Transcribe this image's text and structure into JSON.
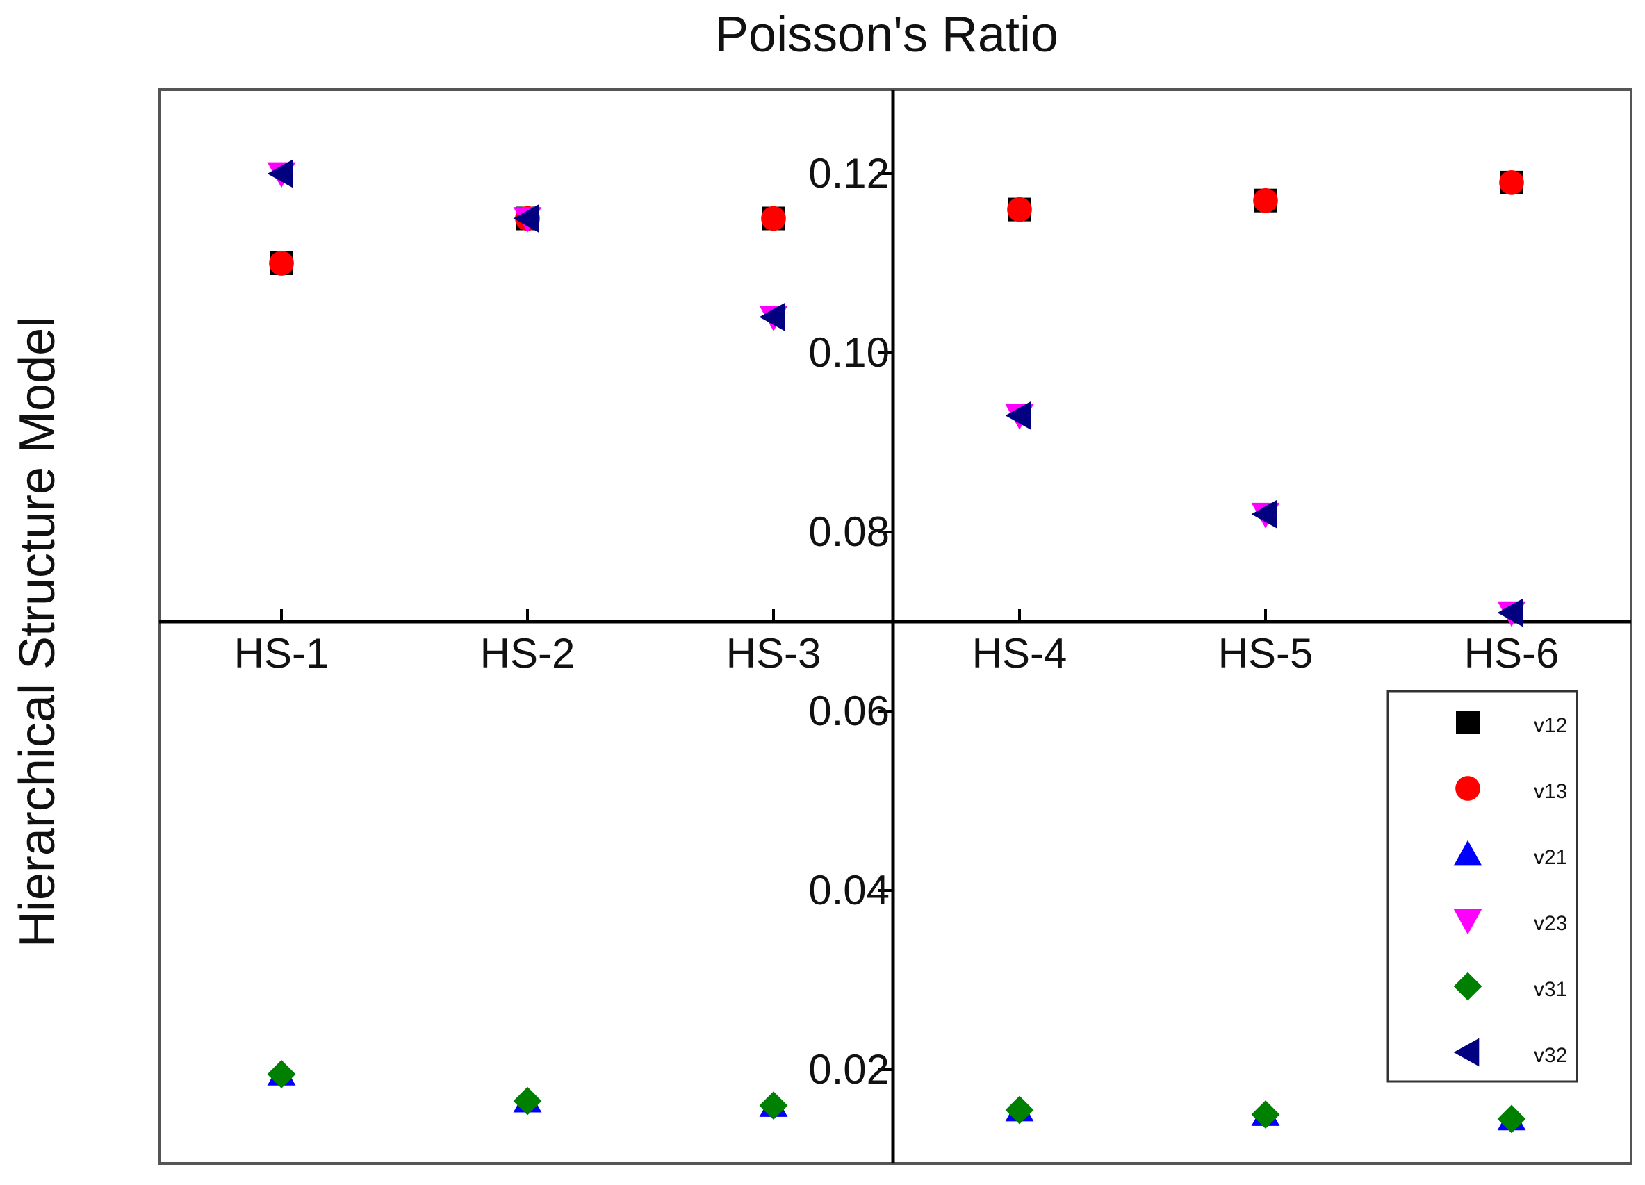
{
  "chart_data": {
    "type": "scatter",
    "title": "Poisson's Ratio",
    "xlabel": "",
    "ylabel": "Hierarchical Structure Model",
    "categories": [
      "HS-1",
      "HS-2",
      "HS-3",
      "HS-4",
      "HS-5",
      "HS-6"
    ],
    "ylim": [
      0.01,
      0.13
    ],
    "axis_crossing_y": 0.07,
    "yticks": [
      0.02,
      0.04,
      0.06,
      0.08,
      0.1,
      0.12
    ],
    "ytick_labels": [
      "0.02",
      "0.04",
      "0.06",
      "0.08",
      "0.10",
      "0.12"
    ],
    "legend_position": "bottom-right",
    "series": [
      {
        "name": "v12",
        "marker": "square",
        "color": "#000000",
        "values": [
          0.11,
          0.115,
          0.115,
          0.116,
          0.117,
          0.119
        ]
      },
      {
        "name": "v13",
        "marker": "circle",
        "color": "#ff0000",
        "values": [
          0.11,
          0.115,
          0.115,
          0.116,
          0.117,
          0.119
        ]
      },
      {
        "name": "v21",
        "marker": "triangle-up",
        "color": "#0000ff",
        "values": [
          0.0195,
          0.0165,
          0.016,
          0.0155,
          0.015,
          0.0145
        ]
      },
      {
        "name": "v23",
        "marker": "triangle-down",
        "color": "#ff00ff",
        "values": [
          0.12,
          0.115,
          0.104,
          0.093,
          0.082,
          0.071
        ]
      },
      {
        "name": "v31",
        "marker": "diamond",
        "color": "#008000",
        "values": [
          0.0195,
          0.0165,
          0.016,
          0.0155,
          0.015,
          0.0145
        ]
      },
      {
        "name": "v32",
        "marker": "triangle-left",
        "color": "#000080",
        "values": [
          0.12,
          0.115,
          0.104,
          0.093,
          0.082,
          0.071
        ]
      }
    ]
  }
}
